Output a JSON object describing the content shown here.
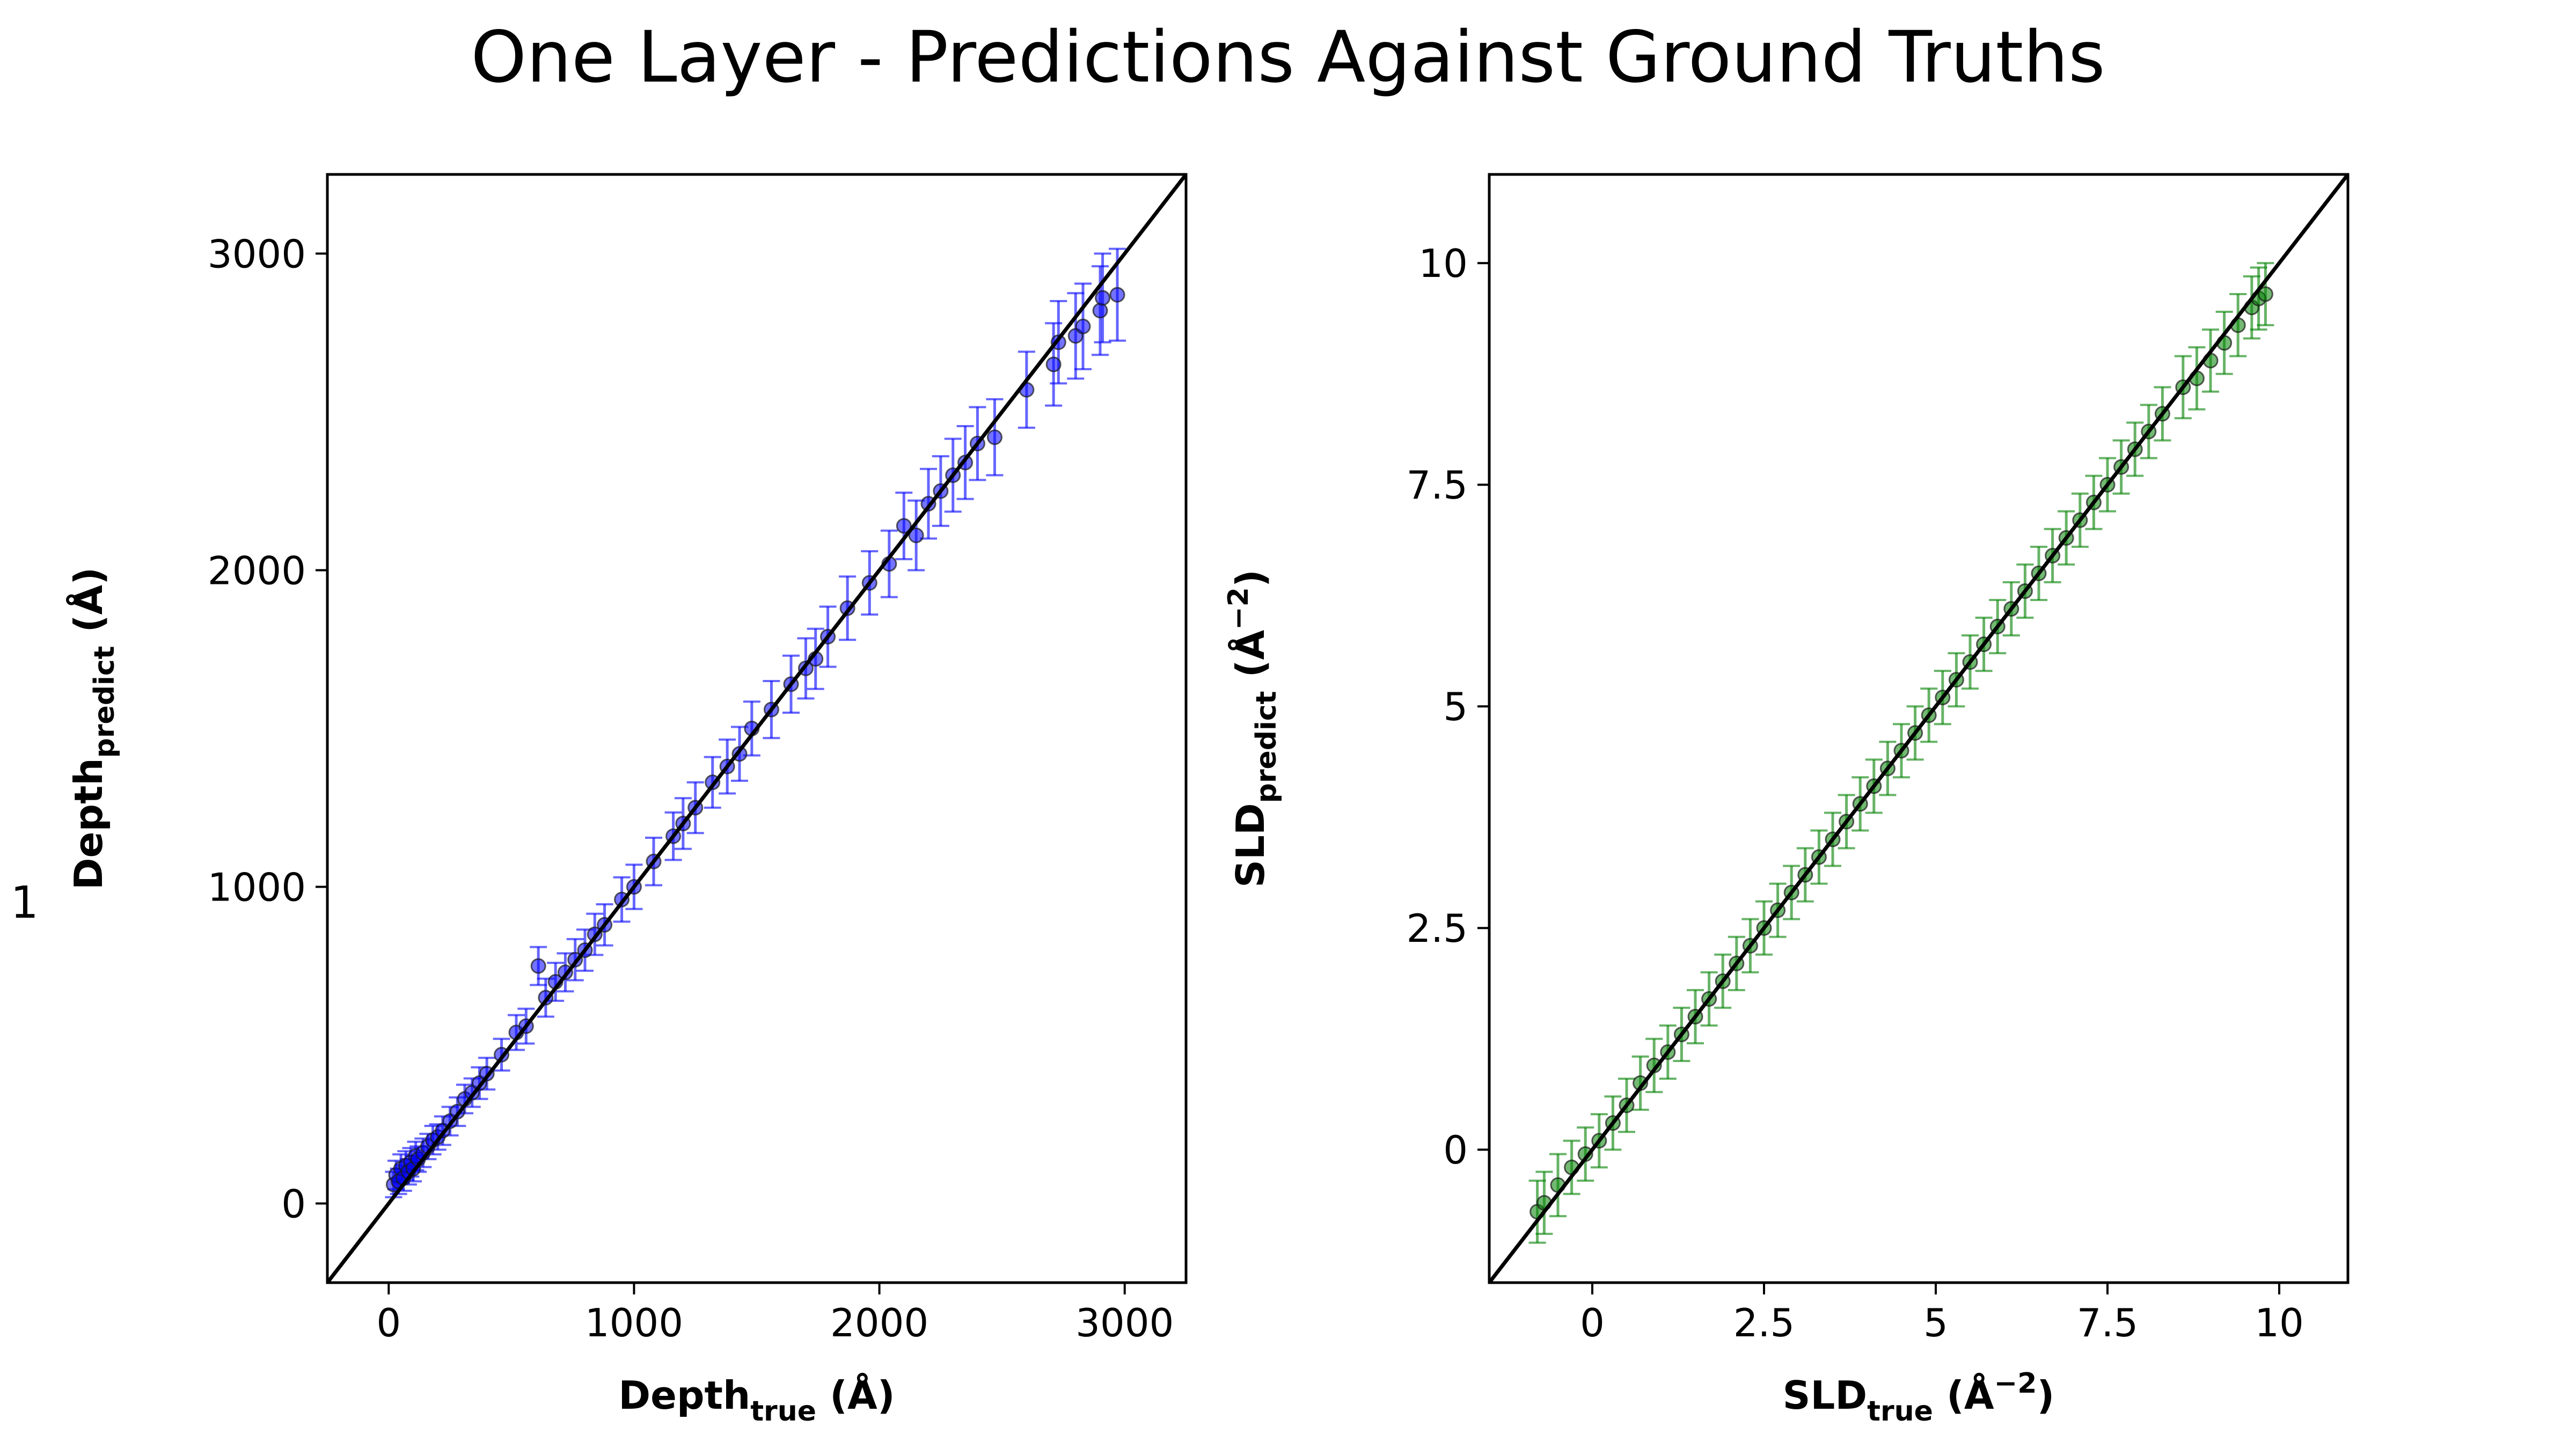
{
  "figure": {
    "title": "One Layer - Predictions Against Ground Truths",
    "side_label": "- 1"
  },
  "chart_data": [
    {
      "type": "scatter",
      "title": "",
      "xlabel": {
        "main": "Depth",
        "sub": "true",
        "unit": " (Å)"
      },
      "ylabel": {
        "main": "Depth",
        "sub": "predict",
        "unit": " (Å)"
      },
      "xlim": [
        -250,
        3250
      ],
      "ylim": [
        -250,
        3250
      ],
      "xticks": [
        0,
        1000,
        2000,
        3000
      ],
      "yticks": [
        0,
        1000,
        2000,
        3000
      ],
      "xtick_labels": [
        "0",
        "1000",
        "2000",
        "3000"
      ],
      "ytick_labels": [
        "0",
        "1000",
        "2000",
        "3000"
      ],
      "grid": false,
      "identity_line": true,
      "color": "#0000ff",
      "points": [
        [
          20,
          60,
          40
        ],
        [
          30,
          90,
          45
        ],
        [
          40,
          70,
          40
        ],
        [
          50,
          110,
          45
        ],
        [
          60,
          80,
          40
        ],
        [
          70,
          120,
          45
        ],
        [
          80,
          100,
          40
        ],
        [
          90,
          130,
          45
        ],
        [
          100,
          110,
          40
        ],
        [
          110,
          150,
          45
        ],
        [
          120,
          140,
          40
        ],
        [
          140,
          160,
          45
        ],
        [
          160,
          180,
          40
        ],
        [
          180,
          200,
          45
        ],
        [
          200,
          210,
          40
        ],
        [
          220,
          230,
          45
        ],
        [
          250,
          260,
          45
        ],
        [
          280,
          290,
          45
        ],
        [
          310,
          330,
          45
        ],
        [
          340,
          350,
          45
        ],
        [
          370,
          380,
          50
        ],
        [
          400,
          410,
          50
        ],
        [
          460,
          470,
          50
        ],
        [
          520,
          540,
          55
        ],
        [
          560,
          560,
          55
        ],
        [
          610,
          750,
          60
        ],
        [
          640,
          650,
          60
        ],
        [
          680,
          700,
          60
        ],
        [
          720,
          730,
          60
        ],
        [
          760,
          770,
          65
        ],
        [
          800,
          800,
          65
        ],
        [
          840,
          850,
          65
        ],
        [
          880,
          880,
          65
        ],
        [
          950,
          960,
          70
        ],
        [
          1000,
          1000,
          70
        ],
        [
          1080,
          1080,
          75
        ],
        [
          1160,
          1160,
          75
        ],
        [
          1200,
          1200,
          80
        ],
        [
          1250,
          1250,
          80
        ],
        [
          1320,
          1330,
          80
        ],
        [
          1380,
          1380,
          85
        ],
        [
          1430,
          1420,
          85
        ],
        [
          1480,
          1500,
          85
        ],
        [
          1560,
          1560,
          90
        ],
        [
          1640,
          1640,
          90
        ],
        [
          1700,
          1690,
          95
        ],
        [
          1740,
          1720,
          95
        ],
        [
          1790,
          1790,
          95
        ],
        [
          1870,
          1880,
          100
        ],
        [
          1960,
          1960,
          100
        ],
        [
          2040,
          2020,
          105
        ],
        [
          2100,
          2140,
          105
        ],
        [
          2150,
          2110,
          110
        ],
        [
          2200,
          2210,
          110
        ],
        [
          2250,
          2250,
          110
        ],
        [
          2300,
          2300,
          115
        ],
        [
          2350,
          2340,
          115
        ],
        [
          2400,
          2400,
          115
        ],
        [
          2470,
          2420,
          120
        ],
        [
          2600,
          2570,
          120
        ],
        [
          2710,
          2650,
          130
        ],
        [
          2730,
          2720,
          130
        ],
        [
          2800,
          2740,
          135
        ],
        [
          2830,
          2770,
          135
        ],
        [
          2900,
          2820,
          140
        ],
        [
          2910,
          2860,
          140
        ],
        [
          2970,
          2870,
          145
        ]
      ]
    },
    {
      "type": "scatter",
      "title": "",
      "xlabel": {
        "main": "SLD",
        "sub": "true",
        "unit": " (Å",
        "sup": "−2",
        "close": ")"
      },
      "ylabel": {
        "main": "SLD",
        "sub": "predict",
        "unit": " (Å",
        "sup": "−2",
        "close": ")"
      },
      "xlim": [
        -1.5,
        11
      ],
      "ylim": [
        -1.5,
        11
      ],
      "xticks": [
        0,
        2.5,
        5,
        7.5,
        10
      ],
      "yticks": [
        0,
        2.5,
        5,
        7.5,
        10
      ],
      "xtick_labels": [
        "0",
        "2.5",
        "5",
        "7.5",
        "10"
      ],
      "ytick_labels": [
        "0",
        "2.5",
        "5",
        "7.5",
        "10"
      ],
      "grid": false,
      "identity_line": true,
      "color": "#008000",
      "points": [
        [
          -0.8,
          -0.7,
          0.35
        ],
        [
          -0.7,
          -0.6,
          0.35
        ],
        [
          -0.5,
          -0.4,
          0.35
        ],
        [
          -0.3,
          -0.2,
          0.3
        ],
        [
          -0.1,
          -0.05,
          0.3
        ],
        [
          0.1,
          0.1,
          0.3
        ],
        [
          0.3,
          0.3,
          0.3
        ],
        [
          0.5,
          0.5,
          0.3
        ],
        [
          0.7,
          0.75,
          0.3
        ],
        [
          0.9,
          0.95,
          0.3
        ],
        [
          1.1,
          1.1,
          0.3
        ],
        [
          1.3,
          1.3,
          0.3
        ],
        [
          1.5,
          1.5,
          0.3
        ],
        [
          1.7,
          1.7,
          0.3
        ],
        [
          1.9,
          1.9,
          0.3
        ],
        [
          2.1,
          2.1,
          0.3
        ],
        [
          2.3,
          2.3,
          0.3
        ],
        [
          2.5,
          2.5,
          0.3
        ],
        [
          2.7,
          2.7,
          0.3
        ],
        [
          2.9,
          2.9,
          0.3
        ],
        [
          3.1,
          3.1,
          0.3
        ],
        [
          3.3,
          3.3,
          0.3
        ],
        [
          3.5,
          3.5,
          0.3
        ],
        [
          3.7,
          3.7,
          0.3
        ],
        [
          3.9,
          3.9,
          0.3
        ],
        [
          4.1,
          4.1,
          0.3
        ],
        [
          4.3,
          4.3,
          0.3
        ],
        [
          4.5,
          4.5,
          0.3
        ],
        [
          4.7,
          4.7,
          0.3
        ],
        [
          4.9,
          4.9,
          0.3
        ],
        [
          5.1,
          5.1,
          0.3
        ],
        [
          5.3,
          5.3,
          0.3
        ],
        [
          5.5,
          5.5,
          0.3
        ],
        [
          5.7,
          5.7,
          0.3
        ],
        [
          5.9,
          5.9,
          0.3
        ],
        [
          6.1,
          6.1,
          0.3
        ],
        [
          6.3,
          6.3,
          0.3
        ],
        [
          6.5,
          6.5,
          0.3
        ],
        [
          6.7,
          6.7,
          0.3
        ],
        [
          6.9,
          6.9,
          0.3
        ],
        [
          7.1,
          7.1,
          0.3
        ],
        [
          7.3,
          7.3,
          0.3
        ],
        [
          7.5,
          7.5,
          0.3
        ],
        [
          7.7,
          7.7,
          0.3
        ],
        [
          7.9,
          7.9,
          0.3
        ],
        [
          8.1,
          8.1,
          0.3
        ],
        [
          8.3,
          8.3,
          0.3
        ],
        [
          8.6,
          8.6,
          0.35
        ],
        [
          8.8,
          8.7,
          0.35
        ],
        [
          9.0,
          8.9,
          0.35
        ],
        [
          9.2,
          9.1,
          0.35
        ],
        [
          9.4,
          9.3,
          0.35
        ],
        [
          9.6,
          9.5,
          0.35
        ],
        [
          9.7,
          9.6,
          0.35
        ],
        [
          9.8,
          9.65,
          0.35
        ]
      ]
    }
  ]
}
